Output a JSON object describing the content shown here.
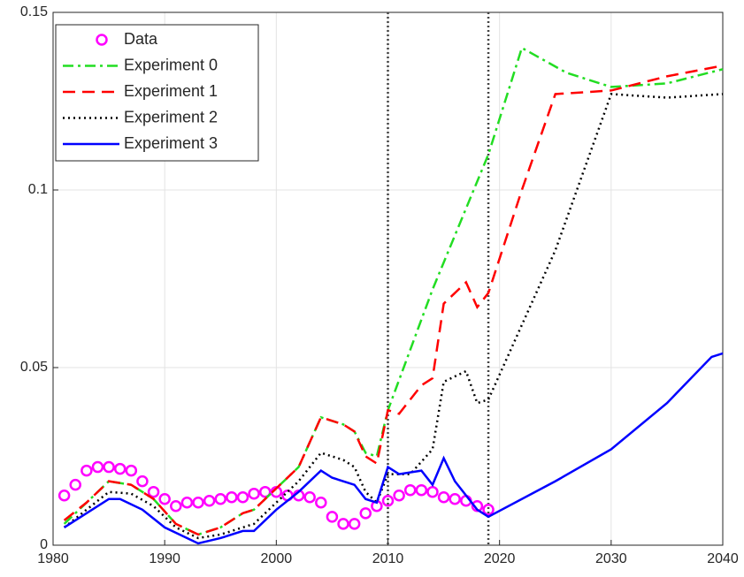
{
  "chart_data": {
    "type": "line",
    "xlim": [
      1980,
      2040
    ],
    "xticks": [
      1980,
      1990,
      2000,
      2010,
      2020,
      2030,
      2040
    ],
    "ylim": [
      0,
      0.15
    ],
    "yticks": [
      0,
      0.05,
      0.1,
      0.15
    ],
    "grid": true,
    "legend": "upper-left",
    "vlines": [
      2010,
      2019
    ],
    "series": [
      {
        "name": "Data",
        "color": "#ff00ff",
        "style": "marker",
        "x": [
          1981,
          1982,
          1983,
          1984,
          1985,
          1986,
          1987,
          1988,
          1989,
          1990,
          1991,
          1992,
          1993,
          1994,
          1995,
          1996,
          1997,
          1998,
          1999,
          2000,
          2001,
          2002,
          2003,
          2004,
          2005,
          2006,
          2007,
          2008,
          2009,
          2010,
          2011,
          2012,
          2013,
          2014,
          2015,
          2016,
          2017,
          2018,
          2019
        ],
        "values": [
          0.014,
          0.017,
          0.021,
          0.022,
          0.022,
          0.0215,
          0.021,
          0.018,
          0.015,
          0.013,
          0.011,
          0.012,
          0.012,
          0.0125,
          0.013,
          0.0135,
          0.0135,
          0.0145,
          0.015,
          0.015,
          0.014,
          0.014,
          0.0135,
          0.012,
          0.008,
          0.006,
          0.006,
          0.009,
          0.011,
          0.0125,
          0.014,
          0.0155,
          0.0155,
          0.015,
          0.0135,
          0.013,
          0.0125,
          0.011,
          0.01
        ]
      },
      {
        "name": "Experiment 0",
        "color": "#22dd22",
        "style": "dashdot",
        "x": [
          1981,
          1983,
          1985,
          1987,
          1989,
          1991,
          1993,
          1995,
          1997,
          1998,
          2000,
          2002,
          2004,
          2006,
          2007,
          2008,
          2009,
          2010,
          2014,
          2019,
          2022,
          2026,
          2030,
          2035,
          2040
        ],
        "values": [
          0.006,
          0.012,
          0.018,
          0.017,
          0.013,
          0.006,
          0.003,
          0.005,
          0.009,
          0.01,
          0.016,
          0.022,
          0.036,
          0.034,
          0.032,
          0.026,
          0.025,
          0.038,
          0.072,
          0.11,
          0.14,
          0.133,
          0.129,
          0.13,
          0.134
        ]
      },
      {
        "name": "Experiment 1",
        "color": "#ff0000",
        "style": "dashed",
        "x": [
          1981,
          1983,
          1985,
          1987,
          1989,
          1991,
          1993,
          1995,
          1997,
          1998,
          2000,
          2002,
          2004,
          2006,
          2007,
          2008,
          2009,
          2010,
          2011,
          2013,
          2014,
          2015,
          2017,
          2018,
          2019,
          2022,
          2025,
          2030,
          2035,
          2040
        ],
        "values": [
          0.007,
          0.012,
          0.018,
          0.017,
          0.013,
          0.006,
          0.003,
          0.005,
          0.009,
          0.01,
          0.016,
          0.022,
          0.036,
          0.034,
          0.032,
          0.025,
          0.023,
          0.038,
          0.037,
          0.045,
          0.047,
          0.068,
          0.074,
          0.067,
          0.071,
          0.1,
          0.127,
          0.128,
          0.132,
          0.135
        ]
      },
      {
        "name": "Experiment 2",
        "color": "#000000",
        "style": "dotted",
        "x": [
          1981,
          1983,
          1985,
          1987,
          1989,
          1991,
          1993,
          1995,
          1997,
          1998,
          2000,
          2002,
          2004,
          2006,
          2007,
          2008,
          2009,
          2010,
          2012,
          2014,
          2015,
          2017,
          2018,
          2019,
          2025,
          2030,
          2035,
          2040
        ],
        "values": [
          0.005,
          0.01,
          0.015,
          0.0145,
          0.011,
          0.005,
          0.002,
          0.003,
          0.005,
          0.006,
          0.012,
          0.018,
          0.026,
          0.024,
          0.022,
          0.015,
          0.012,
          0.02,
          0.02,
          0.027,
          0.046,
          0.049,
          0.04,
          0.041,
          0.083,
          0.127,
          0.126,
          0.127
        ]
      },
      {
        "name": "Experiment 3",
        "color": "#0000ff",
        "style": "solid",
        "x": [
          1981,
          1983,
          1985,
          1986,
          1988,
          1990,
          1993,
          1995,
          1997,
          1998,
          2000,
          2002,
          2004,
          2005,
          2007,
          2008,
          2009,
          2010,
          2011,
          2013,
          2014,
          2015,
          2016,
          2018,
          2019,
          2025,
          2030,
          2035,
          2039,
          2040
        ],
        "values": [
          0.005,
          0.009,
          0.013,
          0.013,
          0.01,
          0.005,
          0.0005,
          0.002,
          0.004,
          0.004,
          0.01,
          0.015,
          0.021,
          0.019,
          0.017,
          0.013,
          0.012,
          0.022,
          0.02,
          0.021,
          0.017,
          0.0245,
          0.018,
          0.01,
          0.008,
          0.018,
          0.027,
          0.04,
          0.053,
          0.054
        ]
      }
    ]
  }
}
